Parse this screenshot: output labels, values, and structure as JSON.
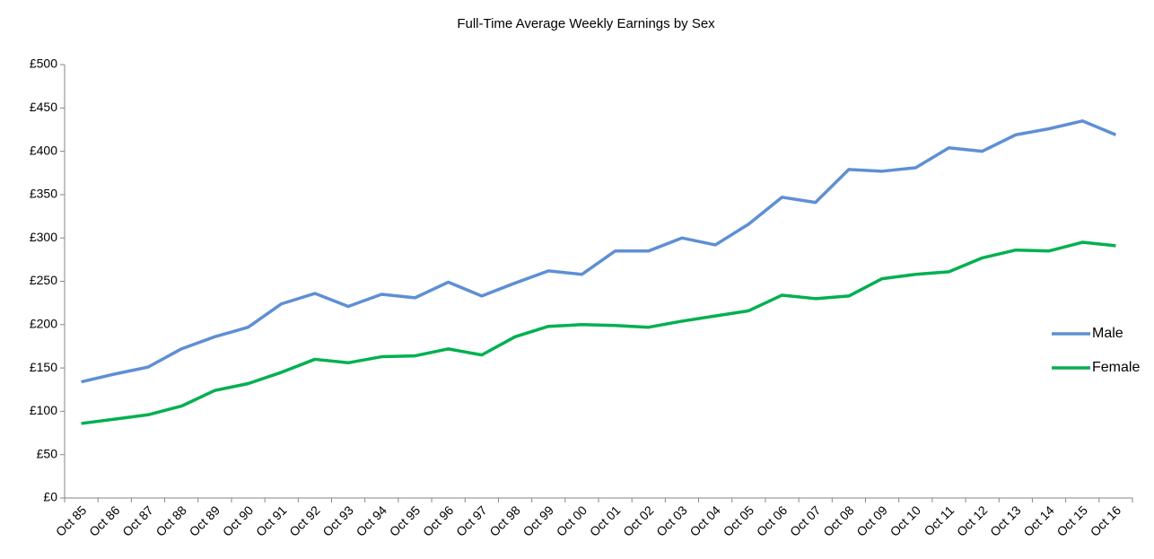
{
  "chart_data": {
    "type": "line",
    "title": "Full-Time Average Weekly Earnings by Sex",
    "categories": [
      "Oct 85",
      "Oct 86",
      "Oct 87",
      "Oct 88",
      "Oct 89",
      "Oct 90",
      "Oct 91",
      "Oct 92",
      "Oct 93",
      "Oct 94",
      "Oct 95",
      "Oct 96",
      "Oct 97",
      "Oct 98",
      "Oct 99",
      "Oct 00",
      "Oct 01",
      "Oct 02",
      "Oct 03",
      "Oct 04",
      "Oct 05",
      "Oct 06",
      "Oct 07",
      "Oct 08",
      "Oct 09",
      "Oct 10",
      "Oct 11",
      "Oct 12",
      "Oct 13",
      "Oct 14",
      "Oct 15",
      "Oct 16"
    ],
    "series": [
      {
        "name": "Male",
        "color": "#5e8fd4",
        "values": [
          134,
          143,
          151,
          172,
          186,
          197,
          224,
          236,
          221,
          235,
          231,
          249,
          233,
          248,
          262,
          258,
          285,
          285,
          300,
          292,
          316,
          347,
          341,
          379,
          377,
          381,
          404,
          400,
          419,
          426,
          435,
          419
        ]
      },
      {
        "name": "Female",
        "color": "#00b050",
        "values": [
          86,
          91,
          96,
          106,
          124,
          132,
          145,
          160,
          156,
          163,
          164,
          172,
          165,
          186,
          198,
          200,
          199,
          197,
          204,
          210,
          216,
          234,
          230,
          233,
          253,
          258,
          261,
          277,
          286,
          285,
          295,
          291
        ]
      }
    ],
    "ylim": [
      0,
      500
    ],
    "yticks": [
      {
        "value": 0,
        "label": "£0"
      },
      {
        "value": 50,
        "label": "£50"
      },
      {
        "value": 100,
        "label": "£100"
      },
      {
        "value": 150,
        "label": "£150"
      },
      {
        "value": 200,
        "label": "£200"
      },
      {
        "value": 250,
        "label": "£250"
      },
      {
        "value": 300,
        "label": "£300"
      },
      {
        "value": 350,
        "label": "£350"
      },
      {
        "value": 400,
        "label": "£400"
      },
      {
        "value": 450,
        "label": "£450"
      },
      {
        "value": 500,
        "label": "£500"
      }
    ],
    "grid": false,
    "legend": "right"
  }
}
